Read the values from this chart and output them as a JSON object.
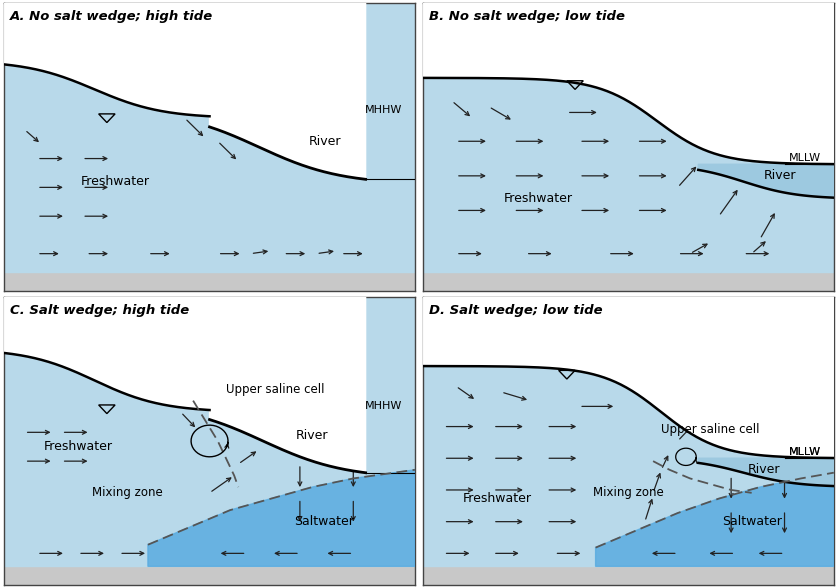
{
  "panel_titles": [
    "A. No salt wedge; high tide",
    "B. No salt wedge; low tide",
    "C. Salt wedge; high tide",
    "D. Salt wedge; low tide"
  ],
  "color_fresh": "#b8d9ea",
  "color_river": "#9dc9e0",
  "color_salt": "#5aace0",
  "color_ground": "#c8c8c8",
  "color_white": "#ffffff",
  "color_arrow": "#333333",
  "color_dark_arrow": "#222222"
}
